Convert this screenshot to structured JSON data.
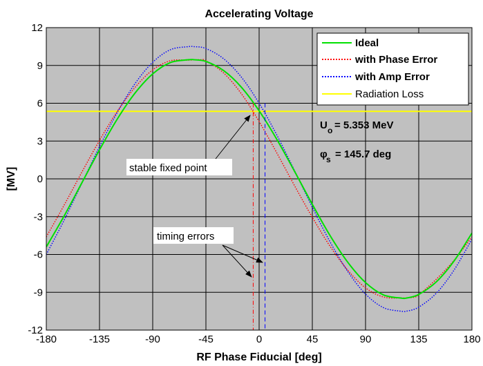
{
  "chart_data": {
    "type": "line",
    "title": "Accelerating Voltage",
    "xlabel": "RF Phase Fiducial  [deg]",
    "ylabel": "[MV]",
    "xlim": [
      -180,
      180
    ],
    "ylim": [
      -12,
      12
    ],
    "xticks": [
      -180,
      -135,
      -90,
      -45,
      0,
      45,
      90,
      135,
      180
    ],
    "yticks": [
      -12,
      -9,
      -6,
      -3,
      0,
      3,
      6,
      9,
      12
    ],
    "grid": true,
    "background": "#c0c0c0",
    "legend_position": "top-right",
    "series": [
      {
        "name": "Ideal",
        "style": "solid",
        "color": "#00e000",
        "bold": true,
        "x": [
          -180,
          -165,
          -150,
          -135,
          -120,
          -105,
          -90,
          -75,
          -60,
          -55,
          -45,
          -30,
          -15,
          0,
          15,
          30,
          45,
          60,
          75,
          90,
          105,
          120,
          125,
          135,
          150,
          165,
          180
        ],
        "y": [
          -5.4,
          -2.96,
          -0.33,
          2.3,
          4.74,
          6.8,
          8.33,
          9.23,
          9.45,
          9.45,
          9.32,
          8.59,
          7.27,
          5.4,
          3.13,
          0.59,
          -2.02,
          -4.5,
          -6.62,
          -8.23,
          -9.2,
          -9.46,
          -9.45,
          -9.17,
          -8.16,
          -6.5,
          -4.3
        ]
      },
      {
        "name": "with Phase Error",
        "style": "dotted",
        "color": "#ff0000",
        "bold": true,
        "x": [
          -180,
          -165,
          -150,
          -135,
          -120,
          -105,
          -90,
          -75,
          -60,
          -50,
          -45,
          -30,
          -15,
          0,
          15,
          30,
          45,
          60,
          75,
          90,
          105,
          120,
          130,
          135,
          150,
          165,
          180
        ],
        "y": [
          -4.6,
          -2.1,
          0.52,
          3.05,
          5.35,
          7.25,
          8.65,
          9.37,
          9.42,
          9.45,
          9.37,
          8.4,
          6.75,
          4.55,
          2.05,
          -0.55,
          -3.05,
          -5.35,
          -7.25,
          -8.65,
          -9.37,
          -9.45,
          -9.4,
          -9.2,
          -7.95,
          -6.45,
          -4.6
        ]
      },
      {
        "name": "with Amp Error",
        "style": "dotted",
        "color": "#0000ff",
        "bold": true,
        "x": [
          -180,
          -165,
          -150,
          -135,
          -120,
          -105,
          -90,
          -75,
          -60,
          -55,
          -45,
          -30,
          -15,
          0,
          15,
          30,
          45,
          60,
          75,
          90,
          105,
          120,
          125,
          135,
          150,
          165,
          180
        ],
        "y": [
          -6.0,
          -3.29,
          -0.36,
          2.55,
          5.26,
          7.55,
          9.25,
          10.25,
          10.49,
          10.49,
          10.34,
          9.53,
          8.07,
          6.0,
          3.47,
          0.65,
          -2.25,
          -5.0,
          -7.35,
          -9.14,
          -10.21,
          -10.5,
          -10.49,
          -10.18,
          -9.06,
          -7.22,
          -4.78
        ]
      },
      {
        "name": "Radiation Loss",
        "style": "solid",
        "color": "#ffff00",
        "bold": false,
        "x": [
          -180,
          180
        ],
        "y": [
          5.353,
          5.353
        ]
      }
    ],
    "timing_lines": [
      {
        "x": -5,
        "color": "#ff0000"
      },
      {
        "x": 5,
        "color": "#0000ff"
      }
    ],
    "annotations": {
      "stable_fixed_point": "stable fixed point",
      "timing_errors": "timing errors",
      "u0_main": "U",
      "u0_sub": "o",
      "u0_value": "= 5.353 MeV",
      "phi_main": "φ",
      "phi_sub": "s",
      "phi_value": "= 145.7 deg"
    }
  }
}
